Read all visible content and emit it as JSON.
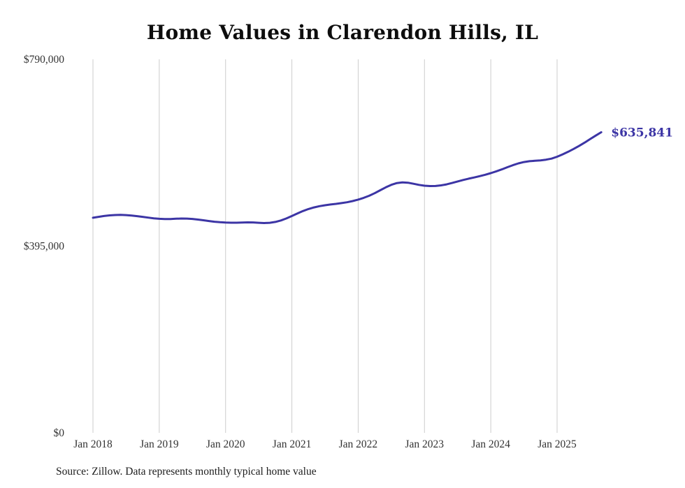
{
  "page": {
    "source_note": "Source: Zillow. Data represents monthly typical home value"
  },
  "chart_data": {
    "type": "line",
    "title": "Home Values in Clarendon Hills, IL",
    "series_name": "Monthly typical home value",
    "x_start": "2018-01",
    "x_interval": "month",
    "grid": true,
    "legend": false,
    "line_color": "#3c35a5",
    "grid_color": "#cccccc",
    "ylim": [
      0,
      790000
    ],
    "end_label": "$635,841",
    "end_value": 635841,
    "y_ticks": [
      {
        "value": 0,
        "label": "$0"
      },
      {
        "value": 395000,
        "label": "$395,000"
      },
      {
        "value": 790000,
        "label": "$790,000"
      }
    ],
    "x_ticks": [
      {
        "month_index": 0,
        "label": "Jan 2018"
      },
      {
        "month_index": 12,
        "label": "Jan 2019"
      },
      {
        "month_index": 24,
        "label": "Jan 2020"
      },
      {
        "month_index": 36,
        "label": "Jan 2021"
      },
      {
        "month_index": 48,
        "label": "Jan 2022"
      },
      {
        "month_index": 60,
        "label": "Jan 2023"
      },
      {
        "month_index": 72,
        "label": "Jan 2024"
      },
      {
        "month_index": 84,
        "label": "Jan 2025"
      }
    ],
    "values": [
      455000,
      456800,
      458600,
      459900,
      460700,
      461000,
      460500,
      459600,
      458400,
      456900,
      455300,
      453800,
      452800,
      452200,
      452300,
      452900,
      453400,
      453200,
      452400,
      451100,
      449600,
      448000,
      446600,
      445500,
      444800,
      444400,
      444500,
      444900,
      445200,
      445000,
      444300,
      443800,
      444300,
      446100,
      449200,
      453500,
      458600,
      464000,
      469100,
      473400,
      476800,
      479400,
      481400,
      483000,
      484400,
      485900,
      487800,
      490300,
      493400,
      497100,
      501500,
      506900,
      513100,
      519400,
      524700,
      528300,
      529800,
      529100,
      526900,
      524500,
      522800,
      522000,
      522200,
      523400,
      525600,
      528500,
      531700,
      534800,
      537600,
      540200,
      542900,
      545900,
      549300,
      553100,
      557300,
      561800,
      566200,
      570000,
      572800,
      574500,
      575500,
      576400,
      577800,
      580000,
      584000,
      589000,
      594500,
      600500,
      607000,
      614000,
      621500,
      628800,
      635841
    ]
  }
}
